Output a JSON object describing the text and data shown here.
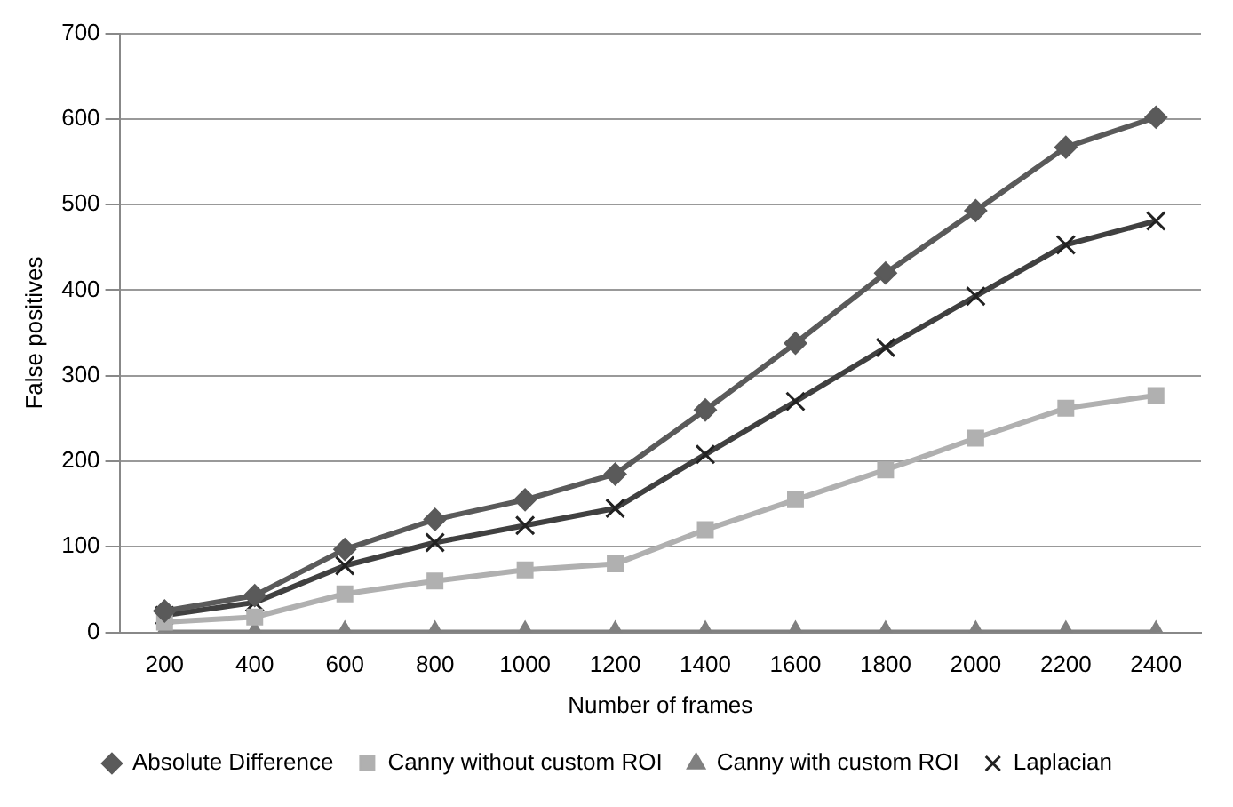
{
  "chart_data": {
    "type": "line",
    "xlabel": "Number of frames",
    "ylabel": "False positives",
    "categories": [
      "200",
      "400",
      "600",
      "800",
      "1000",
      "1200",
      "1400",
      "1600",
      "1800",
      "2000",
      "2200",
      "2400"
    ],
    "series": [
      {
        "name": "Absolute Difference",
        "color": "#5a5a5a",
        "marker": "diamond",
        "values": [
          25,
          43,
          97,
          132,
          155,
          185,
          260,
          338,
          420,
          493,
          567,
          602
        ]
      },
      {
        "name": "Canny without custom ROI",
        "color": "#b0b0b0",
        "marker": "square",
        "values": [
          12,
          18,
          45,
          60,
          73,
          80,
          120,
          155,
          190,
          227,
          262,
          277
        ]
      },
      {
        "name": "Canny with custom ROI",
        "color": "#808080",
        "marker": "triangle",
        "values": [
          0,
          0,
          0,
          0,
          0,
          0,
          0,
          0,
          0,
          0,
          0,
          0
        ]
      },
      {
        "name": "Laplacian",
        "color": "#404040",
        "marker": "cross",
        "values": [
          20,
          35,
          78,
          105,
          125,
          145,
          208,
          270,
          333,
          393,
          453,
          481
        ]
      }
    ],
    "ylim": [
      0,
      700
    ],
    "yticks": [
      0,
      100,
      200,
      300,
      400,
      500,
      600,
      700
    ],
    "grid": "y",
    "legend": "bottom",
    "line_style": "solid"
  }
}
